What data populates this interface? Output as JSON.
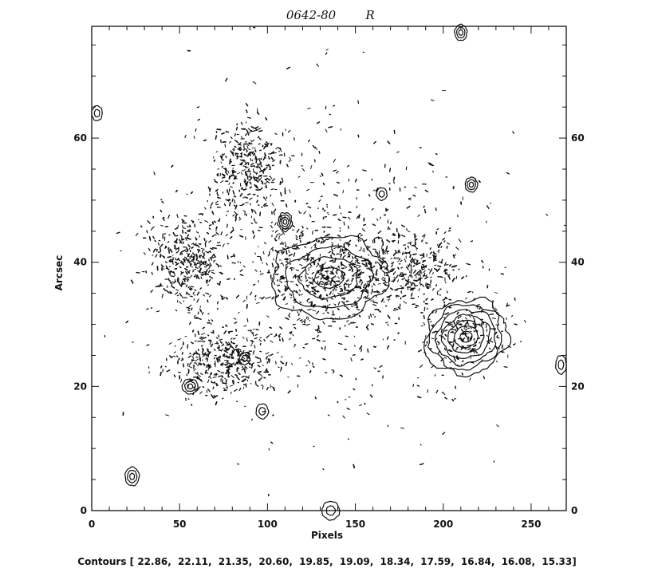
{
  "chart_data": {
    "type": "contour",
    "title": "0642-80",
    "filter": "R",
    "xlabel": "Pixels",
    "ylabel": "Arcsec",
    "xlim": [
      0,
      270
    ],
    "ylim": [
      0,
      78
    ],
    "x_ticks": [
      "0",
      "50",
      "100",
      "150",
      "200",
      "250"
    ],
    "y_ticks_left": [
      "0",
      "20",
      "40",
      "60"
    ],
    "y_ticks_right": [
      "0",
      "20",
      "40",
      "60"
    ],
    "contour_levels_label": "Contours [",
    "contour_levels_text": "22.86,  22.11,  21.35,  20.60,  19.85,  19.09,  18.34,  17.59,  16.84,  16.08,  15.33]",
    "contour_levels": [
      22.86,
      22.11,
      21.35,
      20.6,
      19.85,
      19.09,
      18.34,
      17.59,
      16.84,
      16.08,
      15.33
    ],
    "sources": [
      {
        "label": "main-galaxy",
        "x": 135,
        "y": 37.5,
        "rx": 33,
        "ry": 6.5,
        "rings": 4,
        "angle": -5
      },
      {
        "label": "companion-galaxy",
        "x": 213,
        "y": 28,
        "rx": 24,
        "ry": 6,
        "rings": 7,
        "angle": -20
      },
      {
        "label": "star-upper",
        "x": 110,
        "y": 46.5,
        "rx": 4,
        "ry": 1.5,
        "rings": 4,
        "angle": 0
      },
      {
        "label": "star-top-right",
        "x": 210,
        "y": 77,
        "rx": 3.5,
        "ry": 1.3,
        "rings": 3,
        "angle": 0
      },
      {
        "label": "star-right",
        "x": 216,
        "y": 52.5,
        "rx": 3.5,
        "ry": 1.2,
        "rings": 3,
        "angle": 0
      },
      {
        "label": "star-left-edge",
        "x": 3,
        "y": 64,
        "rx": 3,
        "ry": 1.2,
        "rings": 2,
        "angle": 0
      },
      {
        "label": "knot-1",
        "x": 56,
        "y": 20,
        "rx": 4.5,
        "ry": 1.2,
        "rings": 3,
        "angle": 0
      },
      {
        "label": "knot-2",
        "x": 87,
        "y": 24.5,
        "rx": 3,
        "ry": 1,
        "rings": 2,
        "angle": 0
      },
      {
        "label": "knot-3",
        "x": 97,
        "y": 16,
        "rx": 3.5,
        "ry": 1.2,
        "rings": 2,
        "angle": 0
      },
      {
        "label": "star-lower-left",
        "x": 23,
        "y": 5.5,
        "rx": 4,
        "ry": 1.5,
        "rings": 3,
        "angle": 0
      },
      {
        "label": "star-bottom",
        "x": 136,
        "y": 0,
        "rx": 5,
        "ry": 1.5,
        "rings": 2,
        "angle": 0
      },
      {
        "label": "knot-4",
        "x": 165,
        "y": 51,
        "rx": 3,
        "ry": 1,
        "rings": 2,
        "angle": 0
      },
      {
        "label": "knot-5",
        "x": 267,
        "y": 23.5,
        "rx": 3,
        "ry": 1.5,
        "rings": 2,
        "angle": 0
      }
    ],
    "noise_regions": [
      {
        "label": "upper-plume",
        "x": 88,
        "y": 55,
        "rx": 30,
        "ry": 12,
        "density": 1.0
      },
      {
        "label": "left-lobe",
        "x": 55,
        "y": 40,
        "rx": 35,
        "ry": 12,
        "density": 1.0
      },
      {
        "label": "lower-left-lobe",
        "x": 75,
        "y": 24,
        "rx": 50,
        "ry": 8,
        "density": 1.1
      },
      {
        "label": "central-halo",
        "x": 135,
        "y": 38,
        "rx": 65,
        "ry": 14,
        "density": 0.6
      },
      {
        "label": "right-arm",
        "x": 180,
        "y": 40,
        "rx": 45,
        "ry": 10,
        "density": 0.8
      },
      {
        "label": "companion-halo",
        "x": 215,
        "y": 28,
        "rx": 35,
        "ry": 8,
        "density": 0.7
      },
      {
        "label": "sparse-field",
        "x": 135,
        "y": 39,
        "rx": 140,
        "ry": 40,
        "density": 0.12
      }
    ]
  }
}
